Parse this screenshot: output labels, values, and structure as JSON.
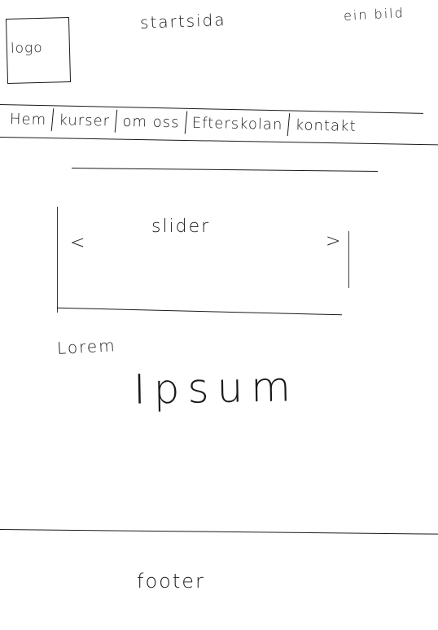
{
  "header": {
    "title": "startsida",
    "corner_note": "ein bild",
    "logo_label": "logo"
  },
  "nav": {
    "items": [
      {
        "label": "Hem"
      },
      {
        "label": "kurser"
      },
      {
        "label": "om oss"
      },
      {
        "label": "Efterskolan"
      },
      {
        "label": "kontakt"
      }
    ]
  },
  "slider": {
    "label": "slider",
    "prev_icon": "<",
    "next_icon": ">"
  },
  "content": {
    "heading": "Lorem",
    "body": "Ipsum"
  },
  "footer": {
    "label": "footer"
  }
}
